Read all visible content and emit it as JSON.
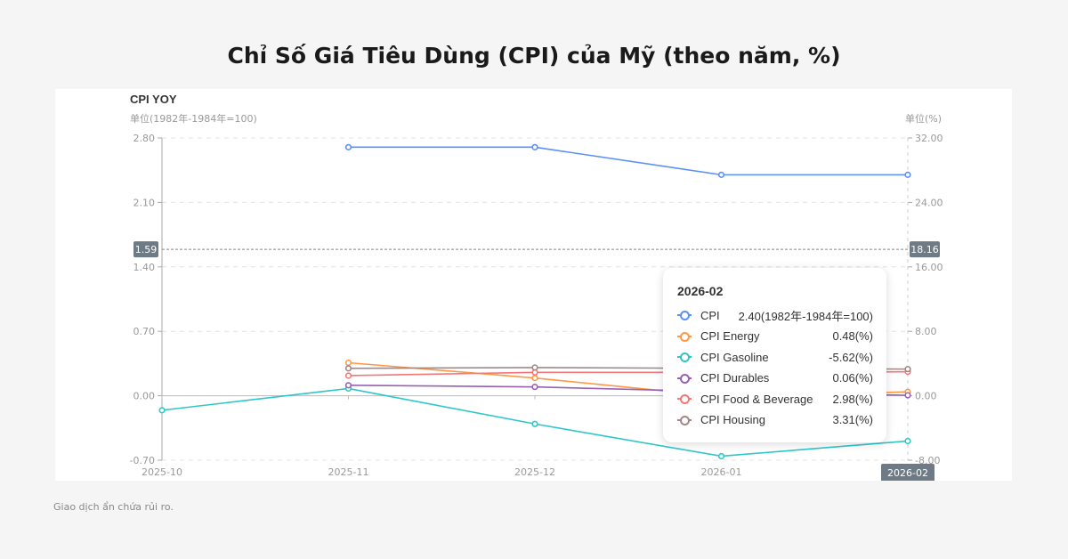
{
  "page_title": "Chỉ Số Giá Tiêu Dùng (CPI) của Mỹ (theo năm, %)",
  "footer": "Giao dịch ẩn chứa rủi ro.",
  "chart_data": {
    "type": "line",
    "title": "CPI YOY",
    "left_axis_label": "单位(1982年-1984年=100)",
    "right_axis_label": "单位(%)",
    "categories": [
      "2025-10",
      "2025-11",
      "2025-12",
      "2026-01",
      "2026-02"
    ],
    "left_ylim": [
      -0.7,
      2.8
    ],
    "left_ticks": [
      "2.80",
      "2.10",
      "1.40",
      "0.70",
      "0.00",
      "-0.70"
    ],
    "right_ylim": [
      -8,
      32
    ],
    "right_ticks": [
      "32.00",
      "24.00",
      "16.00",
      "8.00",
      "0.00",
      "-8.00"
    ],
    "grid": true,
    "series": [
      {
        "name": "CPI",
        "axis": "left",
        "color": "#5b8ff9",
        "values": [
          null,
          2.7,
          2.7,
          2.4,
          2.4
        ]
      },
      {
        "name": "CPI Energy",
        "axis": "right",
        "color": "#ff9845",
        "values": [
          null,
          4.1,
          2.2,
          -0.1,
          0.48
        ]
      },
      {
        "name": "CPI Gasoline",
        "axis": "right",
        "color": "#2ec7c9",
        "values": [
          -1.8,
          0.9,
          -3.5,
          -7.5,
          -5.62
        ]
      },
      {
        "name": "CPI Durables",
        "axis": "right",
        "color": "#9a60b4",
        "values": [
          null,
          1.3,
          1.1,
          0.5,
          0.06
        ]
      },
      {
        "name": "CPI Food & Beverage",
        "axis": "right",
        "color": "#f4777a",
        "values": [
          null,
          2.5,
          2.9,
          2.9,
          2.98
        ]
      },
      {
        "name": "CPI Housing",
        "axis": "right",
        "color": "#a0888a",
        "values": [
          null,
          3.4,
          3.5,
          3.4,
          3.31
        ]
      }
    ],
    "crosshair": {
      "left_value": "1.59",
      "right_value": "18.16",
      "x_label": "2026-02"
    },
    "tooltip": {
      "date": "2026-02",
      "rows": [
        {
          "name": "CPI",
          "value": "2.40(1982年-1984年=100)",
          "color": "#5b8ff9"
        },
        {
          "name": "CPI Energy",
          "value": "0.48(%)",
          "color": "#ff9845"
        },
        {
          "name": "CPI Gasoline",
          "value": "-5.62(%)",
          "color": "#2ec7c9"
        },
        {
          "name": "CPI Durables",
          "value": "0.06(%)",
          "color": "#9a60b4"
        },
        {
          "name": "CPI Food & Beverage",
          "value": "2.98(%)",
          "color": "#f4777a"
        },
        {
          "name": "CPI Housing",
          "value": "3.31(%)",
          "color": "#a0888a"
        }
      ]
    }
  }
}
